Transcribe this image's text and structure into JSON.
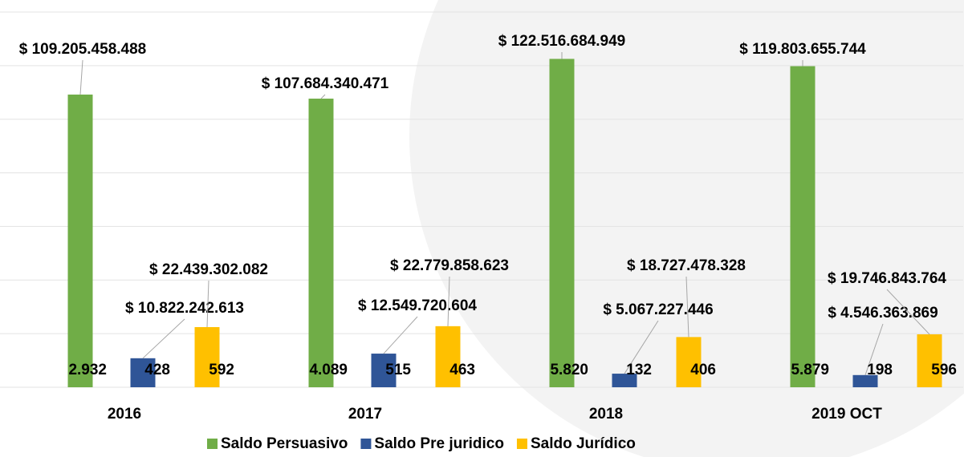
{
  "chart_data": {
    "type": "bar",
    "categories": [
      "2016",
      "2017",
      "2018",
      "2019 OCT"
    ],
    "series": [
      {
        "name": "Saldo Persuasivo",
        "color": "#70ad47",
        "values": [
          109205458488,
          107684340471,
          122516684949,
          119803655744
        ],
        "value_labels": [
          "$ 109.205.458.488",
          "$ 107.684.340.471",
          "$ 122.516.684.949",
          "$ 119.803.655.744"
        ],
        "counts": [
          2932,
          4089,
          5820,
          5879
        ],
        "count_labels": [
          "2.932",
          "4.089",
          "5.820",
          "5.879"
        ]
      },
      {
        "name": "Saldo Pre juridico",
        "color": "#2f5597",
        "values": [
          10822242613,
          12549720604,
          5067227446,
          4546363869
        ],
        "value_labels": [
          "$ 10.822.242.613",
          "$ 12.549.720.604",
          "$ 5.067.227.446",
          "$ 4.546.363.869"
        ],
        "counts": [
          428,
          515,
          132,
          198
        ],
        "count_labels": [
          "428",
          "515",
          "132",
          "198"
        ]
      },
      {
        "name": "Saldo Jurídico",
        "color": "#ffc000",
        "values": [
          22439302082,
          22779858623,
          18727478328,
          19746843764
        ],
        "value_labels": [
          "$ 22.439.302.082",
          "$ 22.779.858.623",
          "$ 18.727.478.328",
          "$ 19.746.843.764"
        ],
        "counts": [
          592,
          463,
          406,
          596
        ],
        "count_labels": [
          "592",
          "463",
          "406",
          "596"
        ]
      }
    ],
    "ylim": [
      0,
      140000000000
    ],
    "yticks": [
      0,
      20000000000,
      40000000000,
      60000000000,
      80000000000,
      100000000000,
      120000000000,
      140000000000
    ],
    "grid": true,
    "legend": "bottom"
  }
}
